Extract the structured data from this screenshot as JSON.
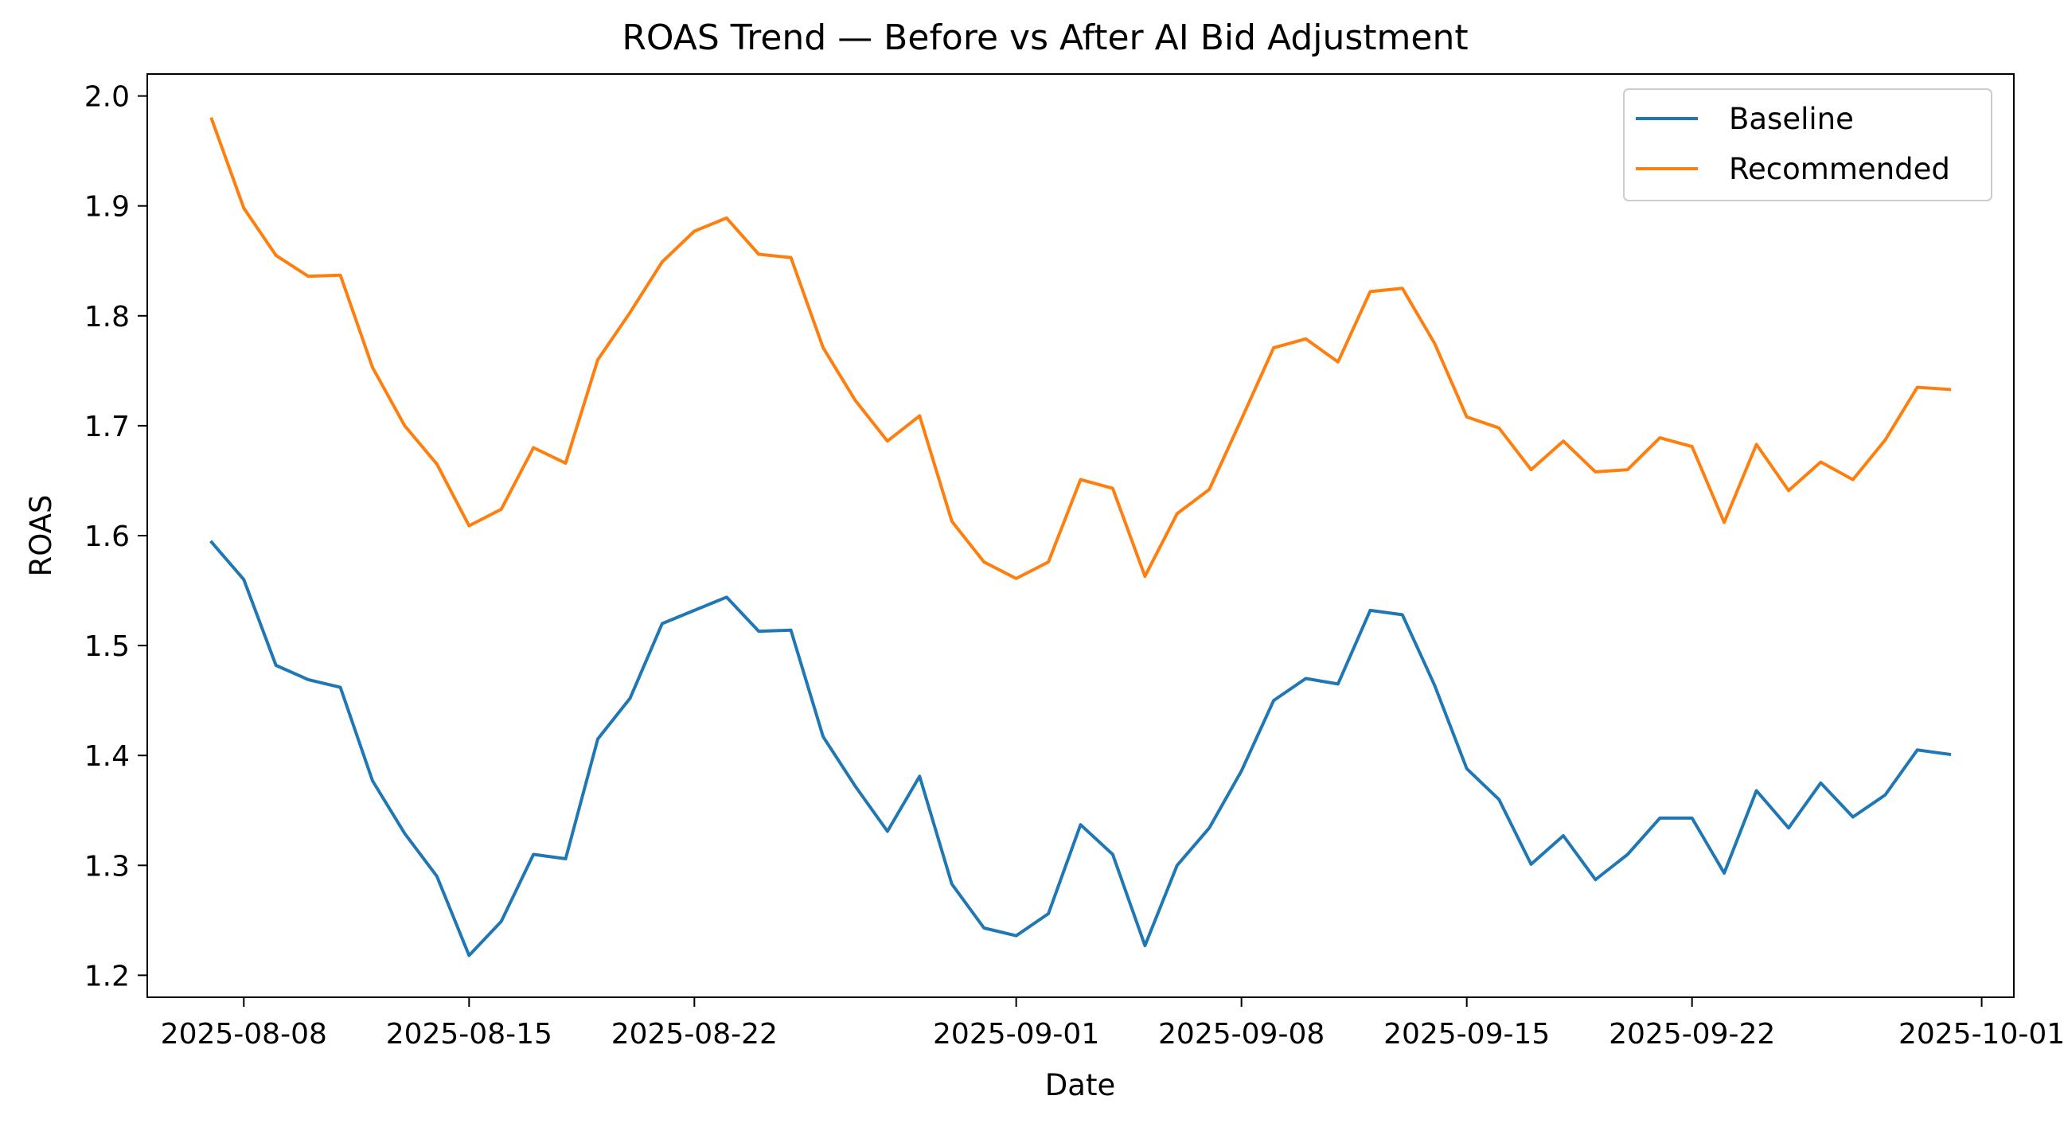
{
  "chart_data": {
    "type": "line",
    "title": "ROAS Trend — Before vs After AI Bid Adjustment",
    "xlabel": "Date",
    "ylabel": "ROAS",
    "x": [
      "2025-08-07",
      "2025-08-08",
      "2025-08-09",
      "2025-08-10",
      "2025-08-11",
      "2025-08-12",
      "2025-08-13",
      "2025-08-14",
      "2025-08-15",
      "2025-08-16",
      "2025-08-17",
      "2025-08-18",
      "2025-08-19",
      "2025-08-20",
      "2025-08-21",
      "2025-08-22",
      "2025-08-23",
      "2025-08-24",
      "2025-08-25",
      "2025-08-26",
      "2025-08-27",
      "2025-08-28",
      "2025-08-29",
      "2025-08-30",
      "2025-08-31",
      "2025-09-01",
      "2025-09-02",
      "2025-09-03",
      "2025-09-04",
      "2025-09-05",
      "2025-09-06",
      "2025-09-07",
      "2025-09-08",
      "2025-09-09",
      "2025-09-10",
      "2025-09-11",
      "2025-09-12",
      "2025-09-13",
      "2025-09-14",
      "2025-09-15",
      "2025-09-16",
      "2025-09-17",
      "2025-09-18",
      "2025-09-19",
      "2025-09-20",
      "2025-09-21",
      "2025-09-22",
      "2025-09-23",
      "2025-09-24",
      "2025-09-25",
      "2025-09-26",
      "2025-09-27",
      "2025-09-28",
      "2025-09-29",
      "2025-09-30"
    ],
    "series": [
      {
        "name": "Baseline",
        "color": "#1f77b4",
        "values": [
          1.594,
          1.56,
          1.482,
          1.469,
          1.462,
          1.377,
          1.329,
          1.29,
          1.218,
          1.249,
          1.31,
          1.306,
          1.415,
          1.452,
          1.52,
          1.532,
          1.544,
          1.513,
          1.514,
          1.417,
          1.372,
          1.331,
          1.381,
          1.283,
          1.243,
          1.236,
          1.256,
          1.337,
          1.31,
          1.227,
          1.3,
          1.334,
          1.386,
          1.45,
          1.47,
          1.465,
          1.532,
          1.528,
          1.464,
          1.388,
          1.36,
          1.301,
          1.327,
          1.287,
          1.31,
          1.343,
          1.343,
          1.293,
          1.368,
          1.334,
          1.375,
          1.344,
          1.364,
          1.405,
          1.401
        ]
      },
      {
        "name": "Recommended",
        "color": "#ff7f0e",
        "values": [
          1.979,
          1.898,
          1.855,
          1.836,
          1.837,
          1.753,
          1.7,
          1.665,
          1.609,
          1.624,
          1.68,
          1.666,
          1.76,
          1.803,
          1.849,
          1.877,
          1.889,
          1.856,
          1.853,
          1.771,
          1.723,
          1.686,
          1.709,
          1.613,
          1.576,
          1.561,
          1.576,
          1.651,
          1.643,
          1.563,
          1.62,
          1.642,
          1.706,
          1.771,
          1.779,
          1.758,
          1.822,
          1.825,
          1.775,
          1.708,
          1.698,
          1.66,
          1.686,
          1.658,
          1.66,
          1.689,
          1.681,
          1.612,
          1.683,
          1.641,
          1.667,
          1.651,
          1.687,
          1.735,
          1.733
        ]
      }
    ],
    "xticks": [
      "2025-08-08",
      "2025-08-15",
      "2025-08-22",
      "2025-09-01",
      "2025-09-08",
      "2025-09-15",
      "2025-09-22",
      "2025-10-01"
    ],
    "yticks": [
      "1.2",
      "1.3",
      "1.4",
      "1.5",
      "1.6",
      "1.7",
      "1.8",
      "1.9",
      "2.0"
    ],
    "xlim": [
      "2025-08-05",
      "2025-10-02"
    ],
    "ylim": [
      1.18,
      2.02
    ],
    "grid": false,
    "legend_placement": "top-right"
  }
}
